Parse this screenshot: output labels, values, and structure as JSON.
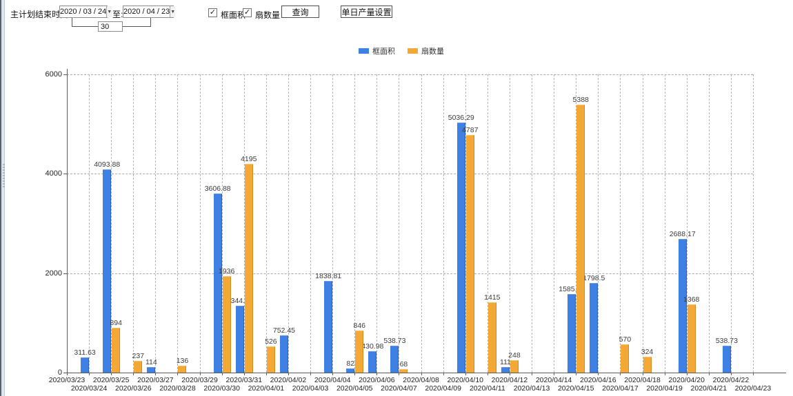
{
  "toolbar": {
    "end_time_label": "主计划结束时间:",
    "date_from": "2020 / 03 / 24",
    "to_label": "至:",
    "date_to": "2020 / 04 / 23",
    "days_value": "30",
    "checkbox_frame_area": {
      "label": "框面积",
      "checked": true
    },
    "checkbox_fan_count": {
      "label": "扇数量",
      "checked": true
    },
    "checked_glyph": "✓",
    "dropdown_glyph": "▼",
    "query_button": "查询",
    "daily_output_button": "单日产量设置"
  },
  "legend": {
    "items": [
      {
        "label": "框面积",
        "color": "#3f80e4"
      },
      {
        "label": "扇数量",
        "color": "#f4a937"
      }
    ]
  },
  "chart_data": {
    "type": "bar",
    "title": "",
    "xlabel": "",
    "ylabel": "",
    "ylim": [
      0,
      6000
    ],
    "yticks": [
      0,
      2000,
      4000,
      6000
    ],
    "grid": true,
    "legend_position": "top",
    "categories": [
      "2020/03/23",
      "2020/03/24",
      "2020/03/25",
      "2020/03/26",
      "2020/03/27",
      "2020/03/28",
      "2020/03/29",
      "2020/03/30",
      "2020/03/31",
      "2020/04/01",
      "2020/04/02",
      "2020/04/03",
      "2020/04/04",
      "2020/04/05",
      "2020/04/06",
      "2020/04/07",
      "2020/04/08",
      "2020/04/09",
      "2020/04/10",
      "2020/04/11",
      "2020/04/12",
      "2020/04/13",
      "2020/04/14",
      "2020/04/15",
      "2020/04/16",
      "2020/04/17",
      "2020/04/18",
      "2020/04/19",
      "2020/04/20",
      "2020/04/21",
      "2020/04/22",
      "2020/04/23"
    ],
    "series": [
      {
        "id": "frame-area",
        "name": "框面积",
        "color": "#3f80e4",
        "values": [
          0,
          311.63,
          4093.88,
          0,
          114,
          0,
          0,
          3606.88,
          1344.95,
          0,
          752.45,
          0,
          1838.81,
          82,
          430.98,
          538.73,
          0,
          0,
          5036.29,
          0,
          111,
          0,
          0,
          1585.96,
          1798.5,
          0,
          0,
          0,
          2688.17,
          0,
          538.73,
          0
        ]
      },
      {
        "id": "fan-count",
        "name": "扇数量",
        "color": "#f4a937",
        "values": [
          0,
          0,
          894,
          237,
          0,
          136,
          0,
          1936,
          4195,
          526,
          0,
          0,
          0,
          846,
          0,
          68,
          0,
          0,
          4787,
          1415,
          248,
          0,
          0,
          5388,
          0,
          570,
          324,
          0,
          1368,
          0,
          0,
          0
        ]
      }
    ]
  }
}
